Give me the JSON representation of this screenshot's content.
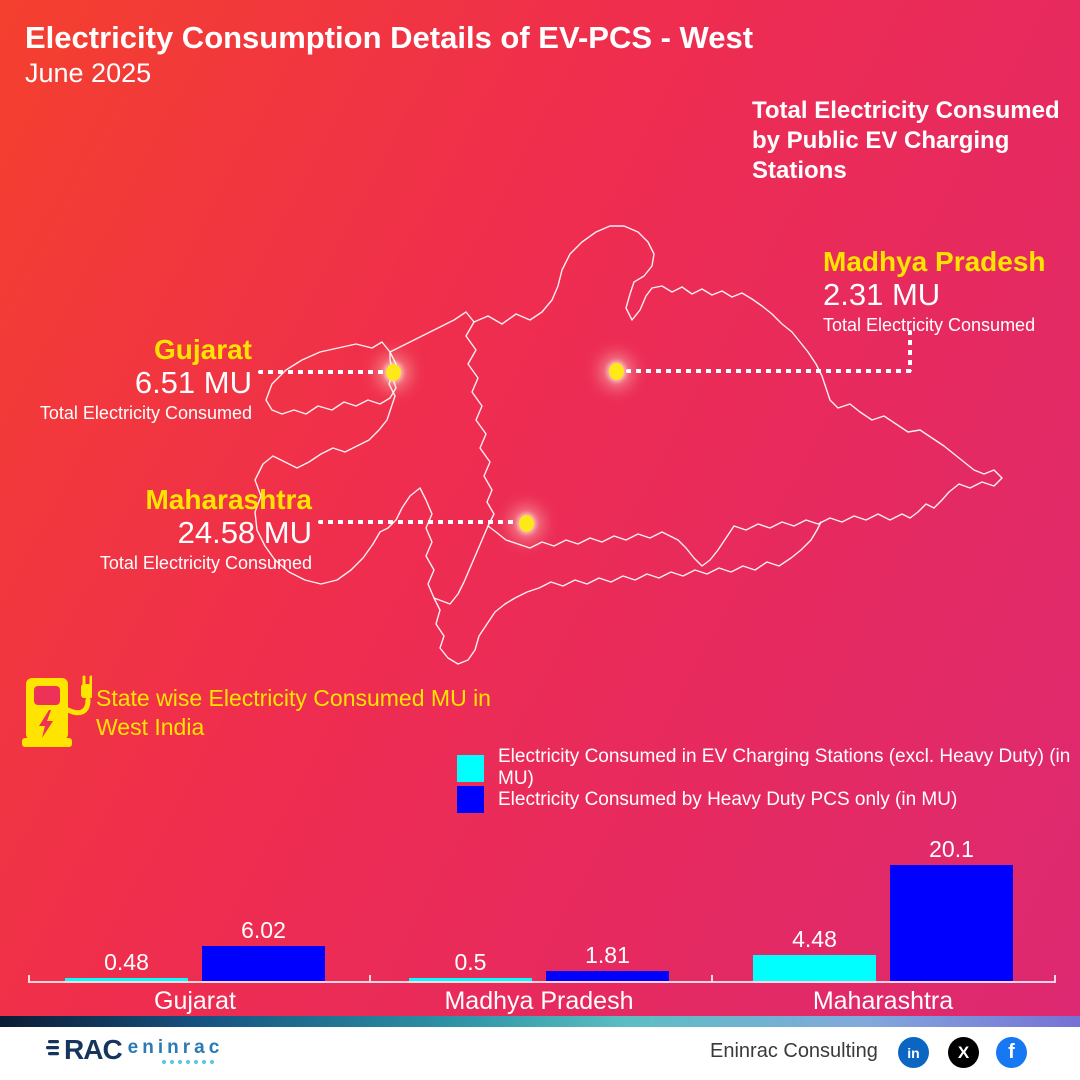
{
  "colors": {
    "bg_top_left": "#f4402e",
    "bg_bottom_right": "#dc2973",
    "accent_yellow": "#ffe400",
    "cyan_series": "#00ffff",
    "blue_series": "#0000ff",
    "white": "#ffffff",
    "linkedin_blue": "#0a66c2",
    "x_black": "#000000",
    "facebook_blue": "#1877f2"
  },
  "header": {
    "title": "Electricity Consumption Details of EV-PCS - West",
    "subtitle": "June 2025"
  },
  "overview": {
    "heading": "Total Electricity Consumed by Public EV Charging Stations",
    "states": [
      {
        "name": "Gujarat",
        "value": "6.51 MU",
        "caption": "Total Electricity Consumed"
      },
      {
        "name": "Madhya Pradesh",
        "value": "2.31 MU",
        "caption": "Total Electricity Consumed"
      },
      {
        "name": "Maharashtra",
        "value": "24.58 MU",
        "caption": "Total Electricity Consumed"
      }
    ]
  },
  "section": {
    "heading": "State wise Electricity Consumed MU in West India",
    "icon": "ev-charger-icon"
  },
  "chart_data": {
    "type": "bar",
    "categories": [
      "Gujarat",
      "Madhya Pradesh",
      "Maharashtra"
    ],
    "series": [
      {
        "name": "Electricity Consumed in EV Charging Stations (excl. Heavy Duty) (in MU)",
        "color": "#00ffff",
        "values": [
          0.48,
          0.5,
          4.48
        ],
        "labels": [
          "0.48",
          "0.5",
          "4.48"
        ]
      },
      {
        "name": "Electricity Consumed by Heavy Duty PCS only (in MU)",
        "color": "#0000ff",
        "values": [
          6.02,
          1.81,
          20.1
        ],
        "labels": [
          "6.02",
          "1.81",
          "20.1"
        ]
      }
    ],
    "unit": "MU",
    "ylim": [
      0,
      22
    ],
    "grid": false,
    "legend_position": "top"
  },
  "footer": {
    "brand_prefix": "RAC",
    "brand_name": "eninrac",
    "company": "Eninrac Consulting",
    "social": [
      {
        "icon": "linkedin-icon",
        "glyph": "in"
      },
      {
        "icon": "x-icon",
        "glyph": "X"
      },
      {
        "icon": "facebook-icon",
        "glyph": "f"
      }
    ]
  }
}
